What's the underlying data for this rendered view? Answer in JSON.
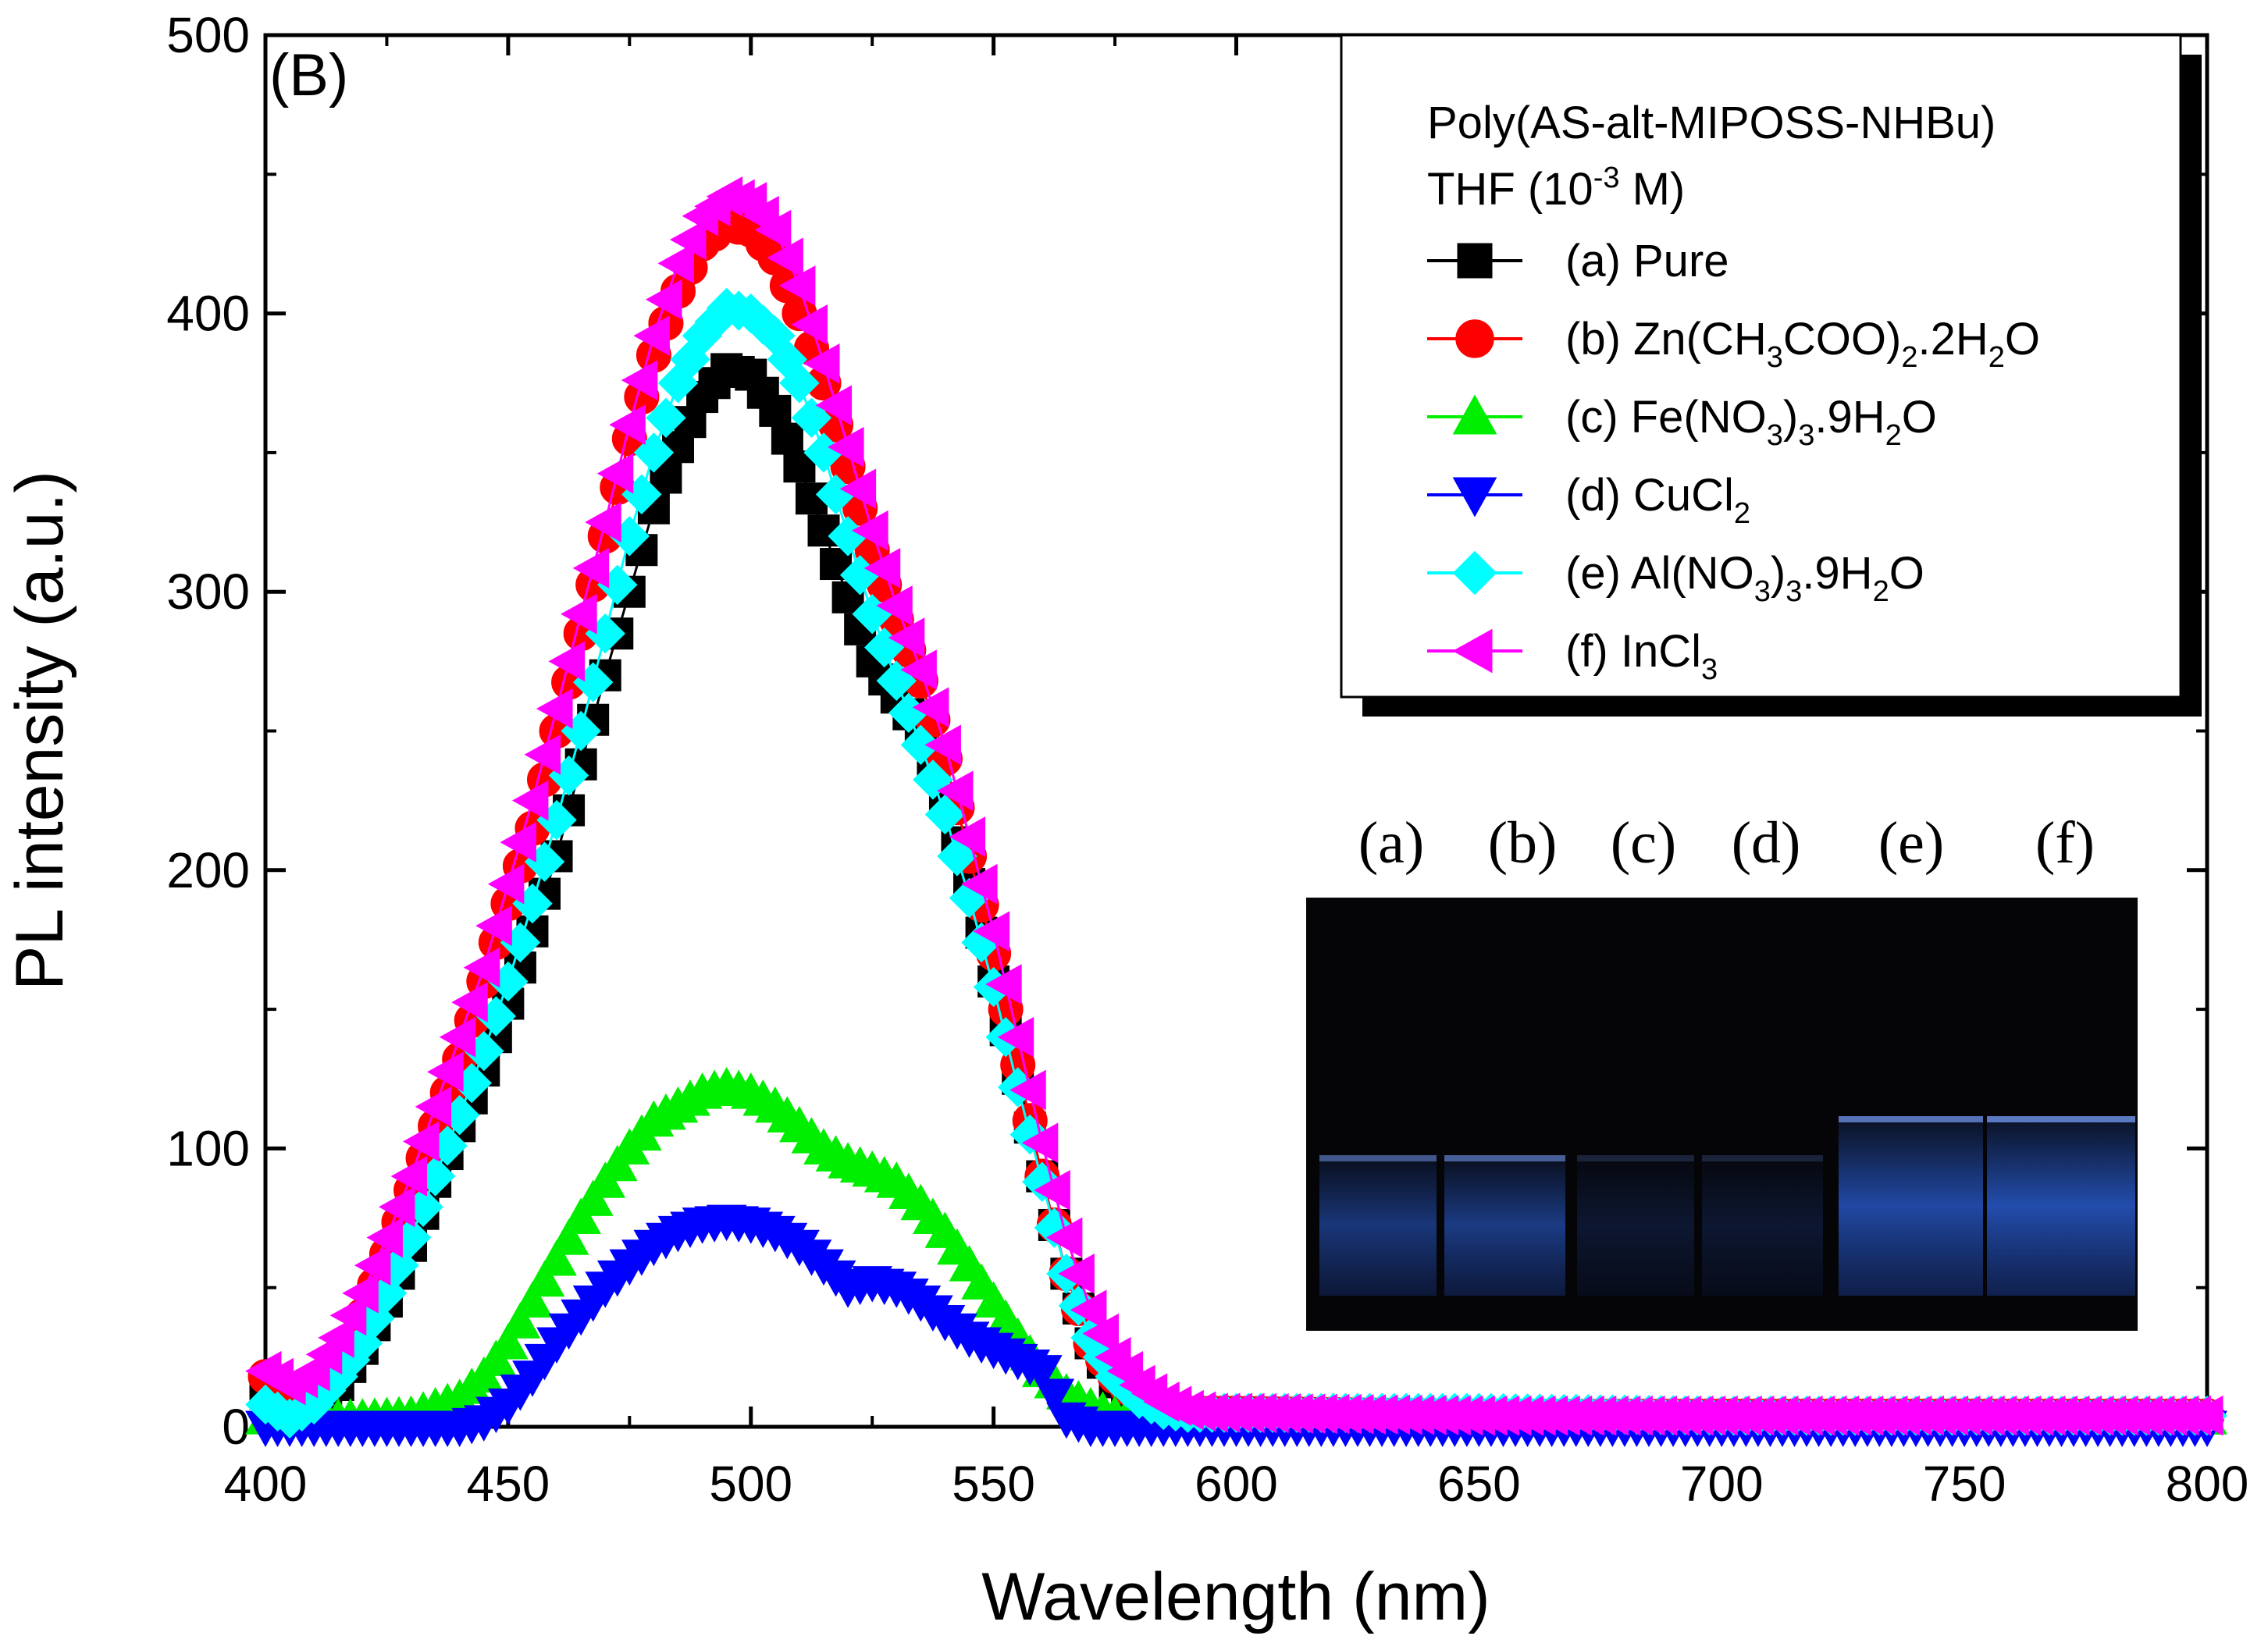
{
  "chart_data": {
    "type": "scatter",
    "panel_label": "(B)",
    "xlabel": "Wavelength (nm)",
    "ylabel": "PL intensity (a.u.)",
    "xlim": [
      400,
      800
    ],
    "ylim": [
      0,
      500
    ],
    "xticks": [
      "400",
      "450",
      "500",
      "550",
      "600",
      "650",
      "700",
      "750",
      "800"
    ],
    "yticks": [
      "0",
      "100",
      "200",
      "300",
      "400",
      "500"
    ],
    "legend": {
      "title_line1": "Poly(AS-alt-MIPOSS-NHBu)",
      "title_line2_main": "THF (10",
      "title_line2_sup": "-3",
      "title_line2_end": " M)",
      "position": "top-right"
    },
    "series": [
      {
        "key": "a",
        "marker": "square",
        "color": "#000000",
        "label_parts": [
          [
            "(a) Pure",
            ""
          ]
        ],
        "points": [
          [
            400,
            12
          ],
          [
            405,
            3
          ],
          [
            410,
            5
          ],
          [
            415,
            15
          ],
          [
            420,
            28
          ],
          [
            425,
            45
          ],
          [
            430,
            65
          ],
          [
            435,
            88
          ],
          [
            440,
            108
          ],
          [
            445,
            128
          ],
          [
            450,
            152
          ],
          [
            455,
            178
          ],
          [
            460,
            205
          ],
          [
            465,
            238
          ],
          [
            470,
            270
          ],
          [
            475,
            300
          ],
          [
            480,
            330
          ],
          [
            485,
            352
          ],
          [
            490,
            370
          ],
          [
            495,
            380
          ],
          [
            500,
            378
          ],
          [
            505,
            365
          ],
          [
            510,
            345
          ],
          [
            515,
            322
          ],
          [
            520,
            298
          ],
          [
            525,
            275
          ],
          [
            530,
            262
          ],
          [
            535,
            250
          ],
          [
            540,
            225
          ],
          [
            545,
            195
          ],
          [
            550,
            160
          ],
          [
            555,
            125
          ],
          [
            560,
            90
          ],
          [
            565,
            55
          ],
          [
            570,
            30
          ],
          [
            575,
            16
          ],
          [
            580,
            8
          ],
          [
            585,
            4
          ],
          [
            590,
            3
          ],
          [
            595,
            3
          ],
          [
            600,
            3
          ],
          [
            650,
            3
          ],
          [
            700,
            3
          ],
          [
            750,
            3
          ],
          [
            800,
            3
          ]
        ]
      },
      {
        "key": "b",
        "marker": "circle",
        "color": "#ff0000",
        "label_parts": [
          [
            "(b) Zn(CH",
            ""
          ],
          [
            "3",
            "sub"
          ],
          [
            "COO)",
            ""
          ],
          [
            "2",
            "sub"
          ],
          [
            ".2H",
            ""
          ],
          [
            "2",
            "sub"
          ],
          [
            "O",
            ""
          ]
        ],
        "points": [
          [
            400,
            18
          ],
          [
            405,
            10
          ],
          [
            410,
            10
          ],
          [
            415,
            22
          ],
          [
            420,
            40
          ],
          [
            425,
            62
          ],
          [
            430,
            85
          ],
          [
            435,
            108
          ],
          [
            440,
            132
          ],
          [
            445,
            160
          ],
          [
            450,
            188
          ],
          [
            455,
            215
          ],
          [
            460,
            250
          ],
          [
            465,
            285
          ],
          [
            470,
            320
          ],
          [
            475,
            355
          ],
          [
            480,
            385
          ],
          [
            485,
            408
          ],
          [
            490,
            425
          ],
          [
            495,
            432
          ],
          [
            500,
            430
          ],
          [
            505,
            420
          ],
          [
            510,
            400
          ],
          [
            515,
            375
          ],
          [
            520,
            345
          ],
          [
            525,
            315
          ],
          [
            530,
            290
          ],
          [
            535,
            268
          ],
          [
            540,
            240
          ],
          [
            545,
            205
          ],
          [
            550,
            170
          ],
          [
            555,
            130
          ],
          [
            560,
            90
          ],
          [
            565,
            55
          ],
          [
            570,
            30
          ],
          [
            575,
            18
          ],
          [
            580,
            10
          ],
          [
            585,
            6
          ],
          [
            590,
            5
          ],
          [
            595,
            5
          ],
          [
            600,
            5
          ],
          [
            650,
            4
          ],
          [
            700,
            4
          ],
          [
            750,
            4
          ],
          [
            800,
            4
          ]
        ]
      },
      {
        "key": "c",
        "marker": "triangle-up",
        "color": "#00ee00",
        "label_parts": [
          [
            "(c) Fe(NO",
            ""
          ],
          [
            "3",
            "sub"
          ],
          [
            ")",
            ""
          ],
          [
            "3",
            "sub"
          ],
          [
            ".9H",
            ""
          ],
          [
            "2",
            "sub"
          ],
          [
            "O",
            ""
          ]
        ],
        "points": [
          [
            400,
            3
          ],
          [
            410,
            3
          ],
          [
            420,
            3
          ],
          [
            430,
            4
          ],
          [
            440,
            10
          ],
          [
            445,
            18
          ],
          [
            450,
            30
          ],
          [
            455,
            45
          ],
          [
            460,
            60
          ],
          [
            465,
            75
          ],
          [
            470,
            88
          ],
          [
            475,
            100
          ],
          [
            480,
            110
          ],
          [
            485,
            115
          ],
          [
            490,
            120
          ],
          [
            495,
            122
          ],
          [
            500,
            120
          ],
          [
            505,
            115
          ],
          [
            510,
            108
          ],
          [
            515,
            100
          ],
          [
            520,
            95
          ],
          [
            525,
            92
          ],
          [
            530,
            88
          ],
          [
            535,
            80
          ],
          [
            540,
            70
          ],
          [
            545,
            58
          ],
          [
            550,
            45
          ],
          [
            555,
            32
          ],
          [
            560,
            20
          ],
          [
            565,
            12
          ],
          [
            570,
            7
          ],
          [
            575,
            4
          ],
          [
            580,
            3
          ],
          [
            600,
            3
          ],
          [
            650,
            3
          ],
          [
            700,
            3
          ],
          [
            750,
            3
          ],
          [
            800,
            3
          ]
        ]
      },
      {
        "key": "d",
        "marker": "triangle-down",
        "color": "#0000ff",
        "label_parts": [
          [
            "(d) CuCl",
            ""
          ],
          [
            "2",
            "sub"
          ]
        ],
        "points": [
          [
            400,
            0
          ],
          [
            410,
            0
          ],
          [
            420,
            0
          ],
          [
            430,
            0
          ],
          [
            440,
            0
          ],
          [
            445,
            2
          ],
          [
            450,
            8
          ],
          [
            455,
            18
          ],
          [
            460,
            30
          ],
          [
            465,
            40
          ],
          [
            470,
            50
          ],
          [
            475,
            58
          ],
          [
            480,
            65
          ],
          [
            485,
            70
          ],
          [
            490,
            73
          ],
          [
            495,
            74
          ],
          [
            500,
            73
          ],
          [
            505,
            70
          ],
          [
            510,
            65
          ],
          [
            515,
            58
          ],
          [
            520,
            50
          ],
          [
            525,
            52
          ],
          [
            530,
            50
          ],
          [
            535,
            45
          ],
          [
            540,
            38
          ],
          [
            545,
            32
          ],
          [
            550,
            28
          ],
          [
            555,
            24
          ],
          [
            560,
            20
          ],
          [
            565,
            3
          ],
          [
            570,
            0
          ],
          [
            580,
            0
          ],
          [
            600,
            0
          ],
          [
            650,
            0
          ],
          [
            700,
            0
          ],
          [
            750,
            0
          ],
          [
            800,
            0
          ]
        ]
      },
      {
        "key": "e",
        "marker": "diamond",
        "color": "#00ffff",
        "label_parts": [
          [
            "(e) Al(NO",
            ""
          ],
          [
            "3",
            "sub"
          ],
          [
            ")",
            ""
          ],
          [
            "3",
            "sub"
          ],
          [
            ".9H",
            ""
          ],
          [
            "2",
            "sub"
          ],
          [
            "O",
            ""
          ]
        ],
        "points": [
          [
            400,
            8
          ],
          [
            405,
            3
          ],
          [
            410,
            8
          ],
          [
            415,
            18
          ],
          [
            420,
            30
          ],
          [
            425,
            48
          ],
          [
            430,
            68
          ],
          [
            435,
            90
          ],
          [
            440,
            112
          ],
          [
            445,
            135
          ],
          [
            450,
            160
          ],
          [
            455,
            188
          ],
          [
            460,
            218
          ],
          [
            465,
            250
          ],
          [
            470,
            285
          ],
          [
            475,
            320
          ],
          [
            480,
            350
          ],
          [
            485,
            375
          ],
          [
            490,
            392
          ],
          [
            495,
            402
          ],
          [
            500,
            400
          ],
          [
            505,
            392
          ],
          [
            510,
            375
          ],
          [
            515,
            350
          ],
          [
            520,
            320
          ],
          [
            525,
            292
          ],
          [
            530,
            268
          ],
          [
            535,
            245
          ],
          [
            540,
            220
          ],
          [
            545,
            190
          ],
          [
            550,
            158
          ],
          [
            555,
            122
          ],
          [
            560,
            88
          ],
          [
            565,
            55
          ],
          [
            570,
            32
          ],
          [
            575,
            18
          ],
          [
            580,
            10
          ],
          [
            585,
            6
          ],
          [
            590,
            5
          ],
          [
            595,
            5
          ],
          [
            600,
            5
          ],
          [
            650,
            5
          ],
          [
            700,
            4
          ],
          [
            750,
            4
          ],
          [
            800,
            4
          ]
        ]
      },
      {
        "key": "f",
        "marker": "triangle-left",
        "color": "#ff00ff",
        "label_parts": [
          [
            "(f) InCl",
            ""
          ],
          [
            "3",
            "sub"
          ]
        ],
        "points": [
          [
            400,
            20
          ],
          [
            405,
            15
          ],
          [
            410,
            20
          ],
          [
            415,
            32
          ],
          [
            420,
            48
          ],
          [
            425,
            68
          ],
          [
            430,
            90
          ],
          [
            435,
            115
          ],
          [
            440,
            140
          ],
          [
            445,
            165
          ],
          [
            450,
            195
          ],
          [
            455,
            225
          ],
          [
            460,
            258
          ],
          [
            465,
            292
          ],
          [
            470,
            325
          ],
          [
            475,
            360
          ],
          [
            480,
            392
          ],
          [
            485,
            418
          ],
          [
            490,
            435
          ],
          [
            495,
            442
          ],
          [
            500,
            440
          ],
          [
            505,
            430
          ],
          [
            510,
            410
          ],
          [
            515,
            382
          ],
          [
            520,
            352
          ],
          [
            525,
            322
          ],
          [
            530,
            295
          ],
          [
            535,
            272
          ],
          [
            540,
            245
          ],
          [
            545,
            212
          ],
          [
            550,
            178
          ],
          [
            555,
            140
          ],
          [
            560,
            102
          ],
          [
            565,
            68
          ],
          [
            570,
            42
          ],
          [
            575,
            25
          ],
          [
            580,
            15
          ],
          [
            585,
            9
          ],
          [
            590,
            6
          ],
          [
            595,
            5
          ],
          [
            600,
            5
          ],
          [
            650,
            4
          ],
          [
            700,
            4
          ],
          [
            750,
            4
          ],
          [
            800,
            4
          ]
        ]
      }
    ]
  },
  "inset": {
    "labels": [
      "(a)",
      "(b)",
      "(c)",
      "(d)",
      "(e)",
      "(f)"
    ],
    "glow_strength": [
      0.55,
      0.6,
      0.2,
      0.2,
      0.75,
      0.8
    ],
    "glow_color": "#2a5fd6",
    "background": "#050508"
  }
}
